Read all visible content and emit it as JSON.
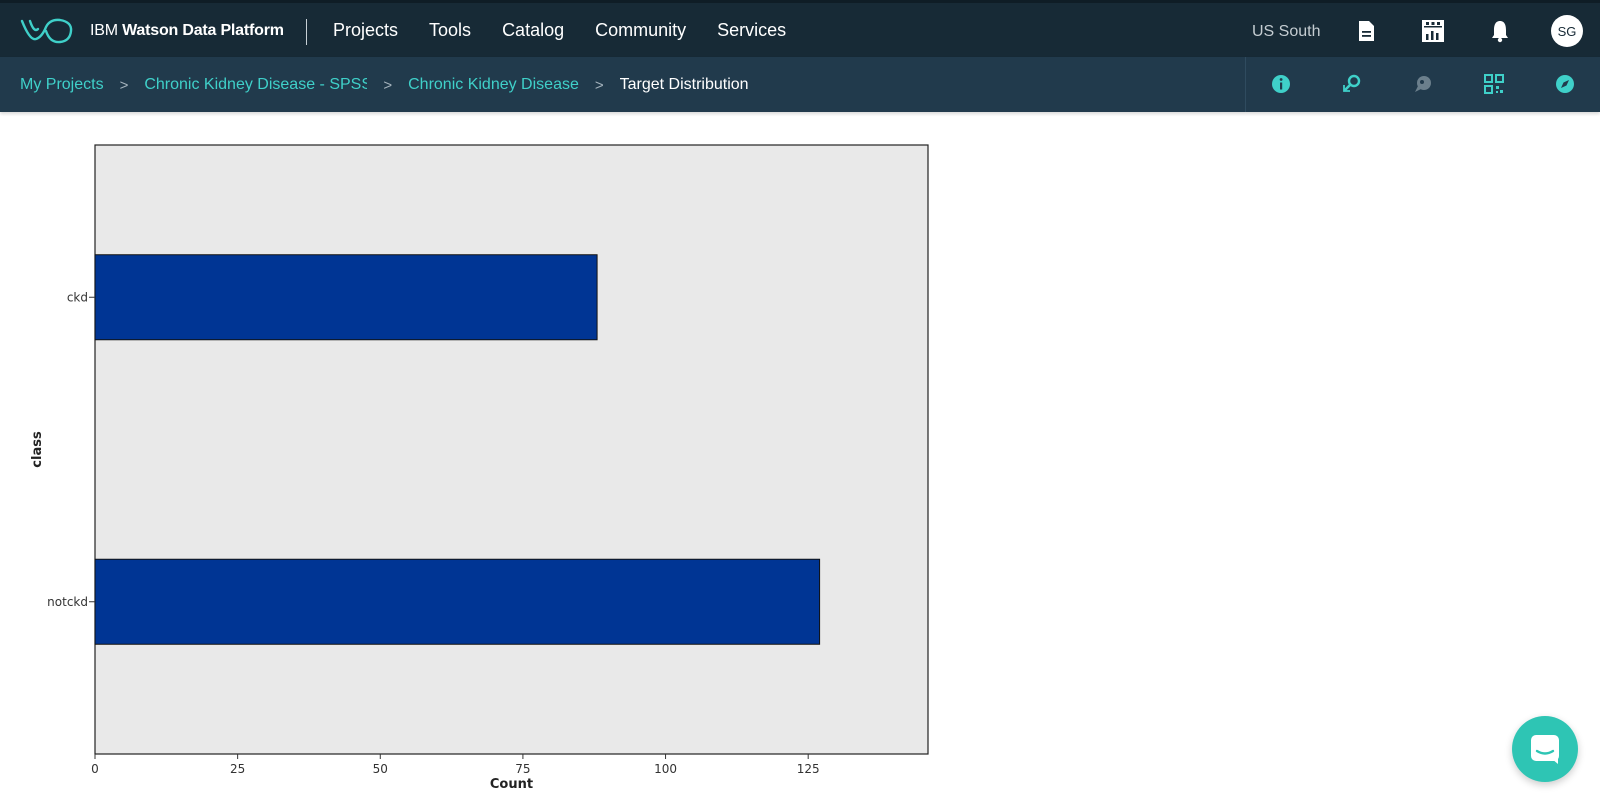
{
  "header": {
    "brand_prefix": "IBM",
    "brand_name": "Watson Data Platform",
    "nav": [
      "Projects",
      "Tools",
      "Catalog",
      "Community",
      "Services"
    ],
    "region": "US South",
    "avatar_initials": "SG",
    "icons": [
      "document-icon",
      "dashboard-icon",
      "bell-icon"
    ]
  },
  "breadcrumb": {
    "items": [
      "My Projects",
      "Chronic Kidney Disease - SPSS M",
      "Chronic Kidney Disease"
    ],
    "current": "Target Distribution",
    "tool_icons": [
      "info-icon",
      "find-icon",
      "comment-icon",
      "qr-icon",
      "compass-icon"
    ]
  },
  "chart_data": {
    "type": "bar",
    "orientation": "horizontal",
    "categories": [
      "ckd",
      "notckd"
    ],
    "values": [
      88,
      127
    ],
    "xlabel": "Count",
    "ylabel": "class",
    "xlim": [
      0,
      146
    ],
    "xticks": [
      0,
      25,
      50,
      75,
      100,
      125
    ],
    "bar_color": "#003594",
    "plot_background": "#e9e9e9",
    "grid": false
  },
  "colors": {
    "header_bg": "#172a36",
    "subbar_bg": "#213a4c",
    "accent": "#3fd0c9",
    "chat_button": "#2ec5b4"
  }
}
